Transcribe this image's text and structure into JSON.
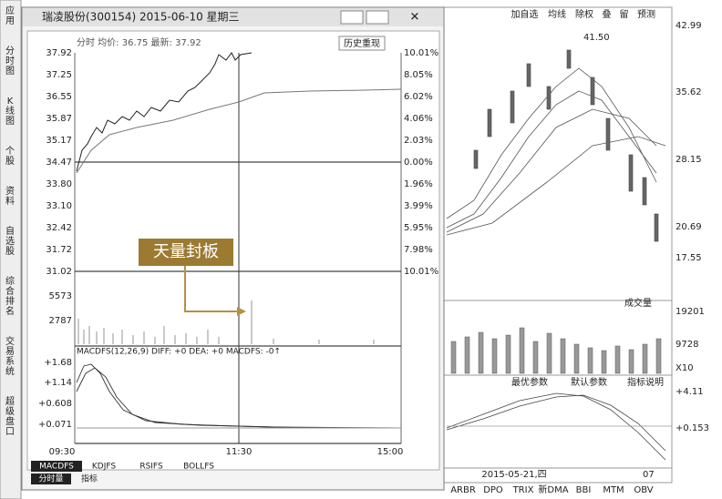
{
  "sidebar": [
    "应用",
    "分时图",
    "K线图",
    "个股",
    "资料",
    "自选股",
    "综合排名",
    "交易系统",
    "超级盘口"
  ],
  "background_chart": {
    "toolbar": [
      "加自选",
      "均线",
      "除权",
      "叠",
      "留",
      "预测"
    ],
    "price_axis": [
      "42.99",
      "35.62",
      "28.15",
      "20.69",
      "17.55"
    ],
    "peak_label": "41.50",
    "volume_dropdown": "成交量",
    "volume_axis": [
      "19201",
      "9728"
    ],
    "scale_label": "X10",
    "buttons": [
      "最优参数",
      "默认参数",
      "指标说明"
    ],
    "macd_axis": [
      "+4.11",
      "+0.153"
    ],
    "date_label": "2015-05-21,四",
    "x_label": "07",
    "tabs": [
      "ARBR",
      "DPO",
      "TRIX",
      "新DMA",
      "BBI",
      "MTM",
      "OBV"
    ]
  },
  "popup": {
    "title": "瑞凌股份(300154) 2015-06-10 星期三",
    "header": "分时 均价: 36.75 最新: 37.92",
    "replay_button": "历史重现",
    "price_axis": [
      "37.92",
      "37.25",
      "36.55",
      "35.87",
      "35.17",
      "34.47",
      "33.80",
      "33.10",
      "32.42",
      "31.72",
      "31.02"
    ],
    "percent_axis": [
      "10.01%",
      "8.05%",
      "6.02%",
      "4.06%",
      "2.03%",
      "0.00%",
      "1.96%",
      "3.99%",
      "5.95%",
      "7.98%",
      "10.01%"
    ],
    "volume_axis": [
      "5573",
      "2787"
    ],
    "annotation": "天量封板",
    "macd_header": "MACDFS(12,26,9) DIFF: +0   DEA: +0   MACDFS: -0↑",
    "macd_axis": [
      "+1.68",
      "+1.14",
      "+0.608",
      "+0.071"
    ],
    "time_axis": [
      "09:30",
      "11:30",
      "15:00"
    ],
    "indicator_tabs": [
      "MACDFS",
      "KDJFS",
      "RSIFS",
      "BOLLFS"
    ],
    "bottom_tabs": [
      "分时量",
      "指标"
    ]
  }
}
